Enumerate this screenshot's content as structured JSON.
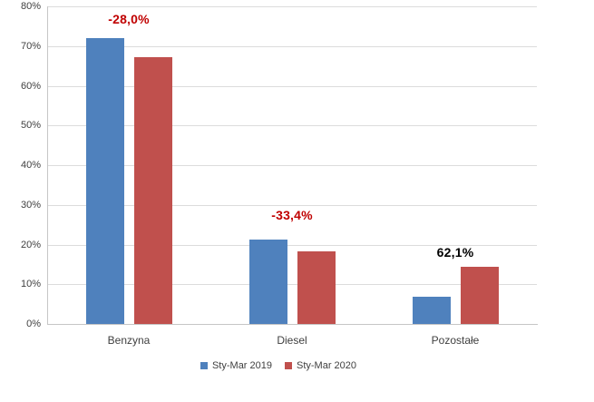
{
  "chart_data": {
    "type": "bar",
    "title": "",
    "categories": [
      "Benzyna",
      "Diesel",
      "Pozostałe"
    ],
    "series": [
      {
        "name": "Sty-Mar 2019",
        "color": "#4f81bd",
        "values": [
          72.0,
          21.2,
          6.8
        ]
      },
      {
        "name": "Sty-Mar 2020",
        "color": "#c0504d",
        "values": [
          67.3,
          18.4,
          14.3
        ]
      }
    ],
    "annotations": [
      {
        "label": "-28,0%",
        "color": "#c00000",
        "category": "Benzyna"
      },
      {
        "label": "-33,4%",
        "color": "#c00000",
        "category": "Diesel"
      },
      {
        "label": "62,1%",
        "color": "#000000",
        "category": "Pozostałe"
      }
    ],
    "y_axis": {
      "min": 0,
      "max": 80,
      "step": 10,
      "unit": "%",
      "tick_labels": [
        "0%",
        "10%",
        "20%",
        "30%",
        "40%",
        "50%",
        "60%",
        "70%",
        "80%"
      ]
    },
    "grid": true,
    "legend_position": "bottom"
  }
}
